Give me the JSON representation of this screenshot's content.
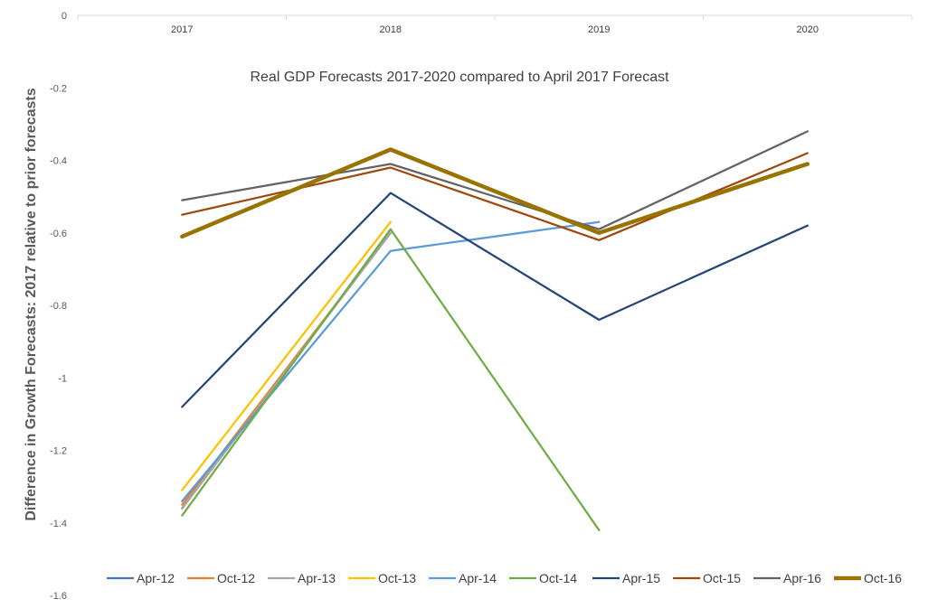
{
  "chart_data": {
    "type": "line",
    "title": "Real GDP Forecasts 2017-2020 compared to April 2017 Forecast",
    "xlabel": "",
    "ylabel": "Difference in Growth Forecasts: 2017 relative to prior forecasts",
    "categories": [
      "2017",
      "2018",
      "2019",
      "2020"
    ],
    "ylim": [
      -1.6,
      0
    ],
    "yticks": [
      "0",
      "-0.2",
      "-0.4",
      "-0.6",
      "-0.8",
      "-1",
      "-1.2",
      "-1.4",
      "-1.6"
    ],
    "x_axis_position": "top",
    "grid": false,
    "legend_position": "bottom",
    "series": [
      {
        "name": "Apr-12",
        "color": "#4472C4",
        "values": [
          -1.36,
          -0.6,
          null,
          null
        ]
      },
      {
        "name": "Oct-12",
        "color": "#ED7D31",
        "values": [
          -1.35,
          -0.6,
          null,
          null
        ]
      },
      {
        "name": "Apr-13",
        "color": "#A5A5A5",
        "values": [
          -1.36,
          -0.6,
          null,
          null
        ]
      },
      {
        "name": "Oct-13",
        "color": "#FFC000",
        "values": [
          -1.31,
          -0.57,
          null,
          null
        ]
      },
      {
        "name": "Apr-14",
        "color": "#5B9BD5",
        "values": [
          -1.34,
          -0.65,
          -0.57,
          null
        ]
      },
      {
        "name": "Oct-14",
        "color": "#70AD47",
        "values": [
          -1.38,
          -0.59,
          -1.42,
          null
        ]
      },
      {
        "name": "Apr-15",
        "color": "#264478",
        "values": [
          -1.08,
          -0.49,
          -0.84,
          -0.58
        ]
      },
      {
        "name": "Oct-15",
        "color": "#9E480E",
        "values": [
          -0.55,
          -0.42,
          -0.62,
          -0.38
        ]
      },
      {
        "name": "Apr-16",
        "color": "#636363",
        "values": [
          -0.51,
          -0.41,
          -0.59,
          -0.32
        ]
      },
      {
        "name": "Oct-16",
        "color": "#997300",
        "values": [
          -0.61,
          -0.37,
          -0.6,
          -0.41
        ]
      }
    ]
  }
}
